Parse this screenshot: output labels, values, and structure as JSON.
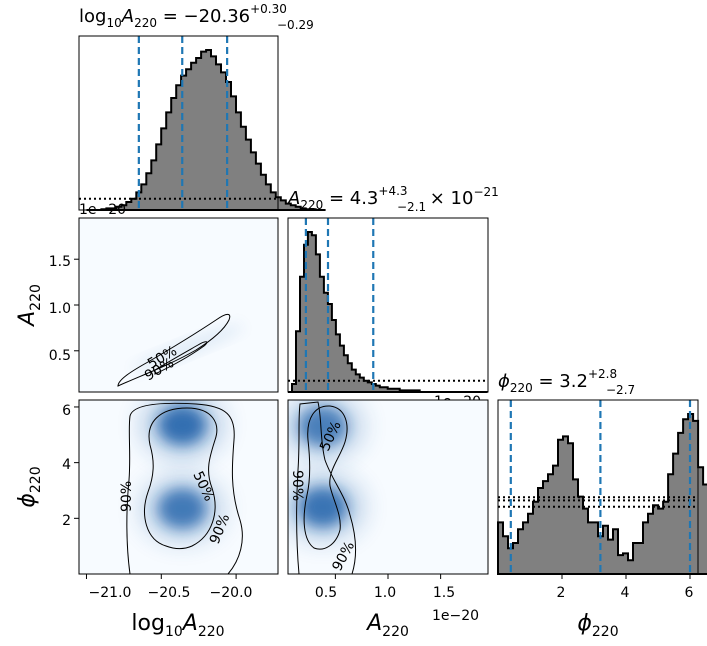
{
  "titles": {
    "logA": {
      "lhs": "log",
      "sub10": "10",
      "var": "A",
      "sub": "220",
      "eq": " = −20.36",
      "plus": "+0.30",
      "minus": "−0.29"
    },
    "A": {
      "var": "A",
      "sub": "220",
      "eq": " = 4.3",
      "plus": "+4.3",
      "minus": "−2.1",
      "tail": " × 10",
      "exp": "−21"
    },
    "phi": {
      "var": "ϕ",
      "sub": "220",
      "eq": " = 3.2",
      "plus": "+2.8",
      "minus": "−2.7"
    }
  },
  "axis_labels": {
    "x_logA": {
      "lhs": "log",
      "sub10": "10",
      "var": "A",
      "sub": "220"
    },
    "x_A": {
      "var": "A",
      "sub": "220"
    },
    "x_phi": {
      "var": "ϕ",
      "sub": "220"
    },
    "y_A": {
      "var": "A",
      "sub": "220"
    },
    "y_phi": {
      "var": "ϕ",
      "sub": "220"
    }
  },
  "offset_texts": {
    "p11": "1e−20",
    "p22": "1e−20",
    "xA": "1e−20"
  },
  "ticks": {
    "logA": [
      "−21.0",
      "−20.5",
      "−20.0"
    ],
    "A": [
      "0.5",
      "1.0",
      "1.5"
    ],
    "phi": [
      "2",
      "4",
      "6"
    ]
  },
  "contour_labels": [
    "50%",
    "90%"
  ],
  "colors": {
    "hist_fill": "#808080",
    "quantile_line": "#1f77b4",
    "density": "#1f5fa8",
    "frame": "#000000"
  },
  "chart_data": {
    "type": "corner",
    "parameters": [
      "log10A220",
      "A220",
      "phi220"
    ],
    "ranges": {
      "log10A220": [
        -21.05,
        -19.72
      ],
      "A220": [
        5e-22,
        1.95e-20
      ],
      "phi220": [
        0.0,
        6.25
      ]
    },
    "quantiles": {
      "log10A220": [
        -20.65,
        -20.36,
        -20.06
      ],
      "A220": [
        2.2e-21,
        4.3e-21,
        8.6e-21
      ],
      "phi220": [
        0.4,
        3.2,
        6.0
      ]
    },
    "hist_logA": {
      "x0": -21.0,
      "dx": 0.0333,
      "values": [
        0,
        0,
        0,
        0.5,
        1,
        1,
        2,
        3,
        5,
        7,
        11,
        16,
        23,
        31,
        41,
        51,
        61,
        70,
        78,
        84,
        88,
        92,
        95,
        99,
        100,
        96,
        91,
        86,
        80,
        71,
        61,
        52,
        44,
        36,
        29,
        22,
        16,
        11,
        8,
        6,
        4,
        3,
        2,
        1,
        0.5,
        0.5,
        0,
        0
      ]
    },
    "hist_logA_prior": 0.07,
    "hist_A": {
      "x0": 5e-22,
      "dx": 3.79e-22,
      "values": [
        0,
        5,
        38,
        72,
        92,
        100,
        98,
        86,
        72,
        62,
        55,
        45,
        36,
        29,
        23,
        18,
        14,
        11,
        9,
        7,
        6,
        5,
        4,
        3,
        3,
        2,
        2,
        2,
        1,
        1,
        1,
        1,
        1,
        0,
        0,
        0,
        0,
        0,
        0,
        0,
        0,
        0,
        0,
        0,
        0,
        0,
        0,
        0,
        0,
        0
      ]
    },
    "hist_A_prior": 0.07,
    "hist_phi": {
      "x0": 0.0,
      "dx": 0.1563,
      "values": [
        30,
        22,
        15,
        18,
        26,
        30,
        35,
        42,
        50,
        54,
        58,
        63,
        78,
        80,
        76,
        55,
        45,
        38,
        30,
        30,
        22,
        28,
        20,
        26,
        11,
        12,
        8,
        18,
        18,
        30,
        35,
        40,
        38,
        42,
        58,
        70,
        82,
        90,
        93,
        89,
        62,
        52,
        48,
        22
      ]
    },
    "hist_phi_prior": [
      0.42,
      0.46,
      0.48
    ],
    "blobs_logA_phi": [
      {
        "x": -20.36,
        "y": 5.35,
        "w": 1.0
      },
      {
        "x": -20.36,
        "y": 2.35,
        "w": 0.9
      }
    ],
    "blobs_A_phi": [
      {
        "x": 3.8e-21,
        "y": 5.3,
        "w": 0.85
      },
      {
        "x": 3.8e-21,
        "y": 2.4,
        "w": 0.95
      }
    ]
  }
}
